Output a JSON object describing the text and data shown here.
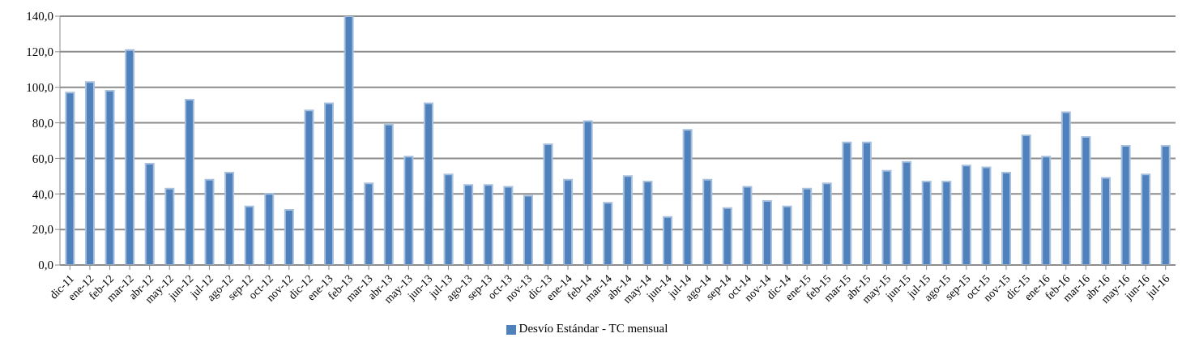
{
  "chart_data": {
    "type": "bar",
    "categories": [
      "dic-11",
      "ene-12",
      "feb-12",
      "mar-12",
      "abr-12",
      "may-12",
      "jun-12",
      "jul-12",
      "ago-12",
      "sep-12",
      "oct-12",
      "nov-12",
      "dic-12",
      "ene-13",
      "feb-13",
      "mar-13",
      "abr-13",
      "may-13",
      "jun-13",
      "jul-13",
      "ago-13",
      "sep-13",
      "oct-13",
      "nov-13",
      "dic-13",
      "ene-14",
      "feb-14",
      "mar-14",
      "abr-14",
      "may-14",
      "jun-14",
      "jul-14",
      "ago-14",
      "sep-14",
      "oct-14",
      "nov-14",
      "dic-14",
      "ene-15",
      "feb-15",
      "mar-15",
      "abr-15",
      "may-15",
      "jun-15",
      "jul-15",
      "ago-15",
      "sep-15",
      "oct-15",
      "nov-15",
      "dic-15",
      "ene-16",
      "feb-16",
      "mar-16",
      "abr-16",
      "may-16",
      "jun-16",
      "jul-16"
    ],
    "series": [
      {
        "name": "Desvío Estándar - TC mensual",
        "color": "#4f81bd",
        "values": [
          97,
          103,
          98,
          121,
          57,
          43,
          93,
          48,
          52,
          33,
          40,
          31,
          87,
          91,
          140,
          46,
          79,
          61,
          91,
          51,
          45,
          45,
          44,
          39,
          68,
          48,
          81,
          35,
          50,
          47,
          27,
          76,
          48,
          32,
          44,
          36,
          33,
          43,
          46,
          69,
          69,
          53,
          58,
          47,
          47,
          56,
          55,
          52,
          73,
          61,
          86,
          72,
          49,
          67,
          51,
          67
        ]
      }
    ],
    "ylim": [
      0,
      140
    ],
    "yticks": [
      {
        "value": 0,
        "label": "0,0"
      },
      {
        "value": 20,
        "label": "20,0"
      },
      {
        "value": 40,
        "label": "40,0"
      },
      {
        "value": 60,
        "label": "60,0"
      },
      {
        "value": 80,
        "label": "80,0"
      },
      {
        "value": 100,
        "label": "100,0"
      },
      {
        "value": 120,
        "label": "120,0"
      },
      {
        "value": 140,
        "label": "140,0"
      }
    ],
    "grid": "y",
    "legend": "bottom"
  }
}
